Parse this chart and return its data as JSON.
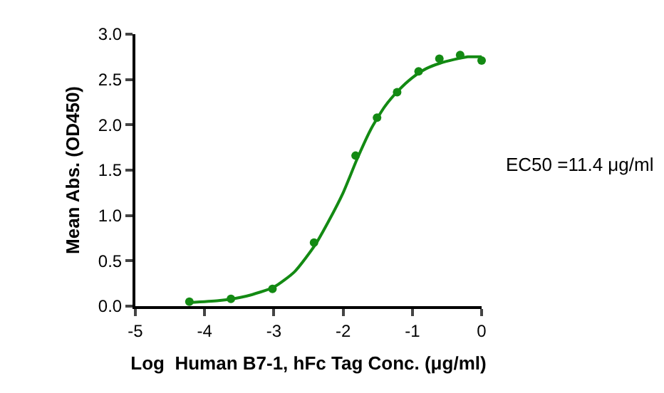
{
  "chart_data": {
    "type": "scatter",
    "xlabel": "Log  Human B7-1, hFc Tag Conc. (μg/ml)",
    "ylabel": "Mean Abs. (OD450)",
    "xlim": [
      -5,
      0
    ],
    "xticks": [
      -5,
      -4,
      -3,
      -2,
      -1,
      0
    ],
    "ylim": [
      0,
      3
    ],
    "yticks": [
      {
        "value": 0,
        "label": "0.0"
      },
      {
        "value": 0.5,
        "label": "0.5"
      },
      {
        "value": 1,
        "label": "1.0"
      },
      {
        "value": 1.5,
        "label": "1.5"
      },
      {
        "value": 2,
        "label": "2.0"
      },
      {
        "value": 2.5,
        "label": "2.5"
      },
      {
        "value": 3,
        "label": "3.0"
      }
    ],
    "annotations": [
      "EC50 =11.4 μg/ml"
    ],
    "series": [
      {
        "type": "scatter",
        "color": "#138a13",
        "marker": "circle",
        "x": [
          -4.22,
          -3.62,
          -3.02,
          -2.42,
          -1.82,
          -1.51,
          -1.22,
          -0.91,
          -0.61,
          -0.31,
          0
        ],
        "values": [
          0.05,
          0.08,
          0.19,
          0.7,
          1.66,
          2.08,
          2.36,
          2.59,
          2.73,
          2.77,
          2.71
        ]
      },
      {
        "type": "line",
        "color": "#138a13",
        "marker": "none",
        "line_style": "solid",
        "x": [
          -4.22,
          -3.8,
          -3.4,
          -3.0,
          -2.7,
          -2.4,
          -2.2,
          -2.0,
          -1.8,
          -1.6,
          -1.4,
          -1.2,
          -1.0,
          -0.8,
          -0.6,
          -0.4,
          -0.2,
          0
        ],
        "values": [
          0.04,
          0.06,
          0.11,
          0.21,
          0.38,
          0.68,
          0.95,
          1.25,
          1.62,
          1.95,
          2.2,
          2.38,
          2.52,
          2.62,
          2.68,
          2.72,
          2.75,
          2.75
        ]
      }
    ]
  }
}
